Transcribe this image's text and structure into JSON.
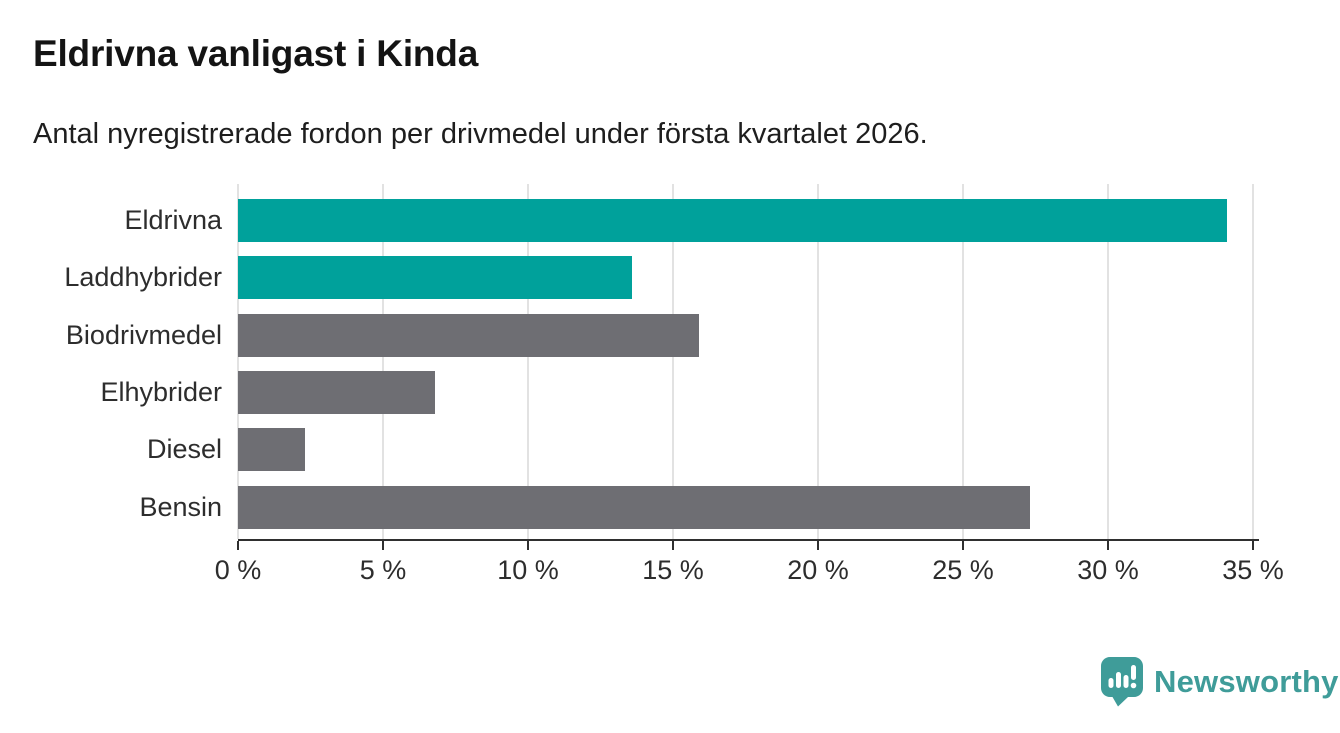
{
  "header": {
    "title": "Eldrivna vanligast i Kinda",
    "subtitle": "Antal nyregistrerade fordon per drivmedel under första kvartalet 2026."
  },
  "chart_data": {
    "type": "bar",
    "orientation": "horizontal",
    "title": "Eldrivna vanligast i Kinda",
    "subtitle": "Antal nyregistrerade fordon per drivmedel under första kvartalet 2026.",
    "categories": [
      "Eldrivna",
      "Laddhybrider",
      "Biodrivmedel",
      "Elhybrider",
      "Diesel",
      "Bensin"
    ],
    "values": [
      34.1,
      13.6,
      15.9,
      6.8,
      2.3,
      27.3
    ],
    "value_unit": "%",
    "xlabel": "",
    "ylabel": "",
    "xlim": [
      0,
      35
    ],
    "xticks": [
      0,
      5,
      10,
      15,
      20,
      25,
      30,
      35
    ],
    "xtick_labels": [
      "0 %",
      "5 %",
      "10 %",
      "15 %",
      "20 %",
      "25 %",
      "30 %",
      "35 %"
    ],
    "grid": "vertical-gridlines-only",
    "legend": "none",
    "bar_colors": [
      "#00a19b",
      "#00a19b",
      "#6e6e73",
      "#6e6e73",
      "#6e6e73",
      "#6e6e73"
    ],
    "highlight_color": "#00a19b",
    "default_color": "#6e6e73",
    "gridline_color": "#e2e2e2",
    "axis_color": "#2f2f2f",
    "label_color": "#2d2d2d"
  },
  "branding": {
    "logo_text": "Newsworthy",
    "logo_color": "#3f9c99",
    "logo_icon": "speech-bubble-bar-chart-icon"
  }
}
